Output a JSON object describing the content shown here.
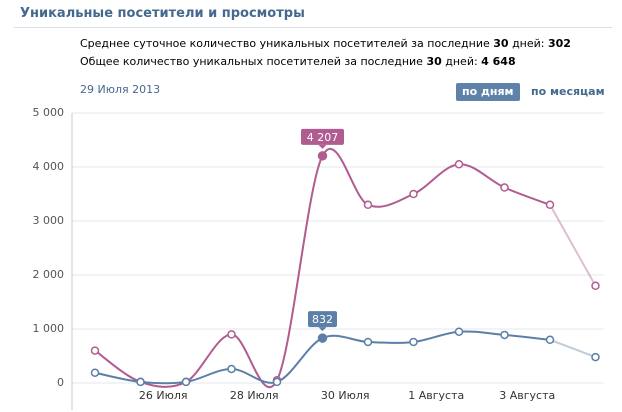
{
  "header": {
    "title": "Уникальные посетители и просмотры",
    "stats": [
      {
        "prefix": "Среднее суточное количество уникальных посетителей за последние",
        "days": "30",
        "suffix": "дней:",
        "value": "302"
      },
      {
        "prefix": "Общее количество уникальных посетителей за последние",
        "days": "30",
        "suffix": "дней:",
        "value": "4 648"
      }
    ],
    "date": "29 Июля 2013",
    "buttons": [
      "по дням",
      "по месяцам"
    ]
  },
  "chart_data": {
    "type": "line",
    "categories": [
      null,
      "26 Июля",
      null,
      "28 Июля",
      null,
      "30 Июля",
      null,
      "1 Августа",
      null,
      "3 Августа",
      null,
      null
    ],
    "series": [
      {
        "name": "Просмотры",
        "color": "#b05c91",
        "values": [
          600,
          20,
          20,
          900,
          50,
          4207,
          3300,
          3500,
          4050,
          3620,
          3300,
          1800
        ],
        "value_labels": {
          "5": "4 207"
        }
      },
      {
        "name": "Уникальные посетители",
        "color": "#5b7fa6",
        "values": [
          190,
          20,
          20,
          260,
          20,
          832,
          760,
          760,
          950,
          890,
          800,
          480
        ],
        "value_labels": {
          "5": "832"
        }
      }
    ],
    "ylim": [
      0,
      5000
    ],
    "yticks": [
      0,
      {
        "value": 1000,
        "label": "1 000"
      },
      {
        "value": 2000,
        "label": "2 000"
      },
      {
        "value": 3000,
        "label": "3 000"
      },
      {
        "value": 4000,
        "label": "4 000"
      },
      {
        "value": 5000,
        "label": "5 000"
      }
    ],
    "grid": true
  }
}
